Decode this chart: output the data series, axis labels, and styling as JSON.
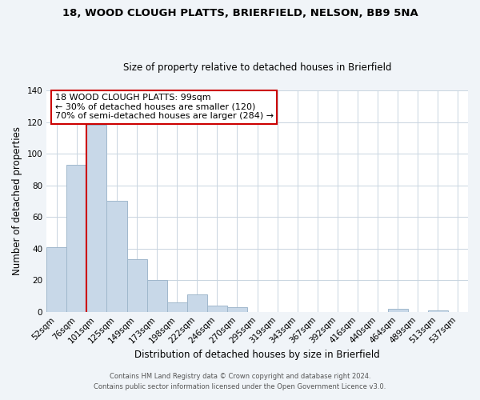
{
  "title1": "18, WOOD CLOUGH PLATTS, BRIERFIELD, NELSON, BB9 5NA",
  "title2": "Size of property relative to detached houses in Brierfield",
  "xlabel": "Distribution of detached houses by size in Brierfield",
  "ylabel": "Number of detached properties",
  "bar_labels": [
    "52sqm",
    "76sqm",
    "101sqm",
    "125sqm",
    "149sqm",
    "173sqm",
    "198sqm",
    "222sqm",
    "246sqm",
    "270sqm",
    "295sqm",
    "319sqm",
    "343sqm",
    "367sqm",
    "392sqm",
    "416sqm",
    "440sqm",
    "464sqm",
    "489sqm",
    "513sqm",
    "537sqm"
  ],
  "bar_values": [
    41,
    93,
    118,
    70,
    33,
    20,
    6,
    11,
    4,
    3,
    0,
    0,
    0,
    0,
    0,
    0,
    0,
    2,
    0,
    1,
    0
  ],
  "bar_color": "#c8d8e8",
  "bar_edge_color": "#a0b8cc",
  "vline_color": "#cc0000",
  "ylim": [
    0,
    140
  ],
  "yticks": [
    0,
    20,
    40,
    60,
    80,
    100,
    120,
    140
  ],
  "annotation_title": "18 WOOD CLOUGH PLATTS: 99sqm",
  "annotation_line1": "← 30% of detached houses are smaller (120)",
  "annotation_line2": "70% of semi-detached houses are larger (284) →",
  "annotation_box_color": "#ffffff",
  "annotation_box_edge": "#cc0000",
  "footer1": "Contains HM Land Registry data © Crown copyright and database right 2024.",
  "footer2": "Contains public sector information licensed under the Open Government Licence v3.0.",
  "background_color": "#f0f4f8",
  "plot_bg_color": "#ffffff",
  "grid_color": "#c8d4e0"
}
